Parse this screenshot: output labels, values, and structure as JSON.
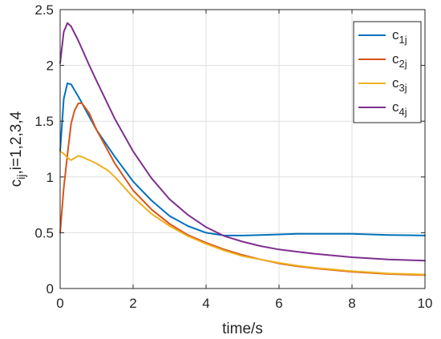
{
  "chart_data": {
    "type": "line",
    "title": "",
    "xlabel": "time/s",
    "ylabel_main": "c",
    "ylabel_sub": "ij",
    "ylabel_rest": ",i=1,2,3,4",
    "xlim": [
      0,
      10
    ],
    "ylim": [
      0,
      2.5
    ],
    "xticks": [
      0,
      2,
      4,
      6,
      8,
      10
    ],
    "xtick_labels": [
      "0",
      "2",
      "4",
      "6",
      "8",
      "10"
    ],
    "yticks": [
      0,
      0.5,
      1,
      1.5,
      2,
      2.5
    ],
    "ytick_labels": [
      "0",
      "0.5",
      "1",
      "1.5",
      "2",
      "2.5"
    ],
    "grid": true,
    "legend_position": "top-right",
    "series": [
      {
        "name": "c",
        "subscript": "1j",
        "color": "#0072BD",
        "x": [
          0,
          0.1,
          0.2,
          0.3,
          0.5,
          0.8,
          1.0,
          1.5,
          2.0,
          2.5,
          3.0,
          3.5,
          4.0,
          4.5,
          5.0,
          5.5,
          6.0,
          6.5,
          7.0,
          7.5,
          8.0,
          8.5,
          9.0,
          9.5,
          10.0
        ],
        "y": [
          1.23,
          1.7,
          1.84,
          1.83,
          1.72,
          1.54,
          1.42,
          1.18,
          0.96,
          0.79,
          0.65,
          0.56,
          0.5,
          0.475,
          0.475,
          0.48,
          0.485,
          0.49,
          0.49,
          0.49,
          0.49,
          0.485,
          0.48,
          0.478,
          0.475
        ]
      },
      {
        "name": "c",
        "subscript": "2j",
        "color": "#D95319",
        "x": [
          0,
          0.1,
          0.2,
          0.3,
          0.4,
          0.5,
          0.6,
          0.8,
          1.0,
          1.5,
          2.0,
          2.5,
          3.0,
          3.5,
          4.0,
          4.5,
          5.0,
          5.5,
          6.0,
          6.5,
          7.0,
          7.5,
          8.0,
          8.5,
          9.0,
          9.5,
          10.0
        ],
        "y": [
          0.5,
          0.9,
          1.2,
          1.48,
          1.6,
          1.66,
          1.66,
          1.57,
          1.42,
          1.12,
          0.88,
          0.71,
          0.58,
          0.48,
          0.41,
          0.35,
          0.3,
          0.26,
          0.225,
          0.2,
          0.18,
          0.165,
          0.15,
          0.14,
          0.13,
          0.125,
          0.12
        ]
      },
      {
        "name": "c",
        "subscript": "3j",
        "color": "#EDB120",
        "x": [
          0,
          0.1,
          0.2,
          0.3,
          0.4,
          0.5,
          0.6,
          0.8,
          1.0,
          1.3,
          1.5,
          2.0,
          2.5,
          3.0,
          3.5,
          4.0,
          4.5,
          5.0,
          5.5,
          6.0,
          6.5,
          7.0,
          7.5,
          8.0,
          8.5,
          9.0,
          9.5,
          10.0
        ],
        "y": [
          1.23,
          1.21,
          1.17,
          1.15,
          1.17,
          1.19,
          1.18,
          1.15,
          1.12,
          1.06,
          1.0,
          0.82,
          0.67,
          0.56,
          0.47,
          0.4,
          0.34,
          0.29,
          0.26,
          0.23,
          0.205,
          0.185,
          0.17,
          0.155,
          0.145,
          0.135,
          0.13,
          0.125
        ]
      },
      {
        "name": "c",
        "subscript": "4j",
        "color": "#7E2F8E",
        "x": [
          0,
          0.1,
          0.2,
          0.3,
          0.5,
          0.8,
          1.0,
          1.5,
          2.0,
          2.5,
          3.0,
          3.5,
          4.0,
          4.5,
          5.0,
          5.5,
          6.0,
          6.5,
          7.0,
          7.5,
          8.0,
          8.5,
          9.0,
          9.5,
          10.0
        ],
        "y": [
          2.02,
          2.3,
          2.38,
          2.35,
          2.22,
          2.0,
          1.86,
          1.52,
          1.23,
          0.99,
          0.8,
          0.66,
          0.55,
          0.47,
          0.42,
          0.38,
          0.35,
          0.33,
          0.31,
          0.295,
          0.28,
          0.27,
          0.26,
          0.255,
          0.25
        ]
      }
    ]
  }
}
